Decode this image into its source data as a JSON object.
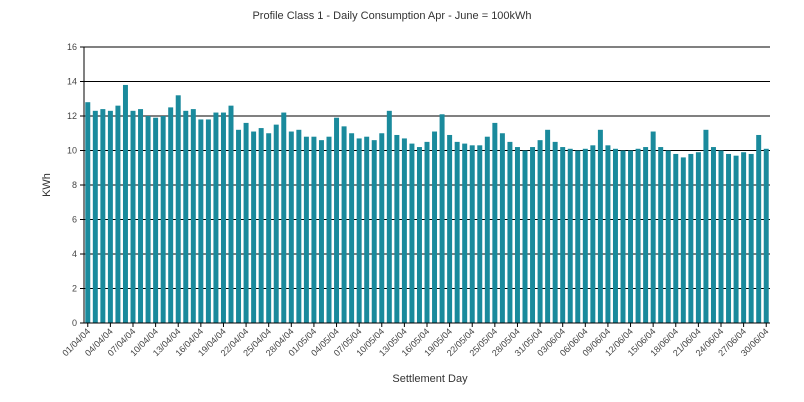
{
  "chart_data": {
    "type": "bar",
    "title": "Profile Class 1 - Daily Consumption Apr - June = 100kWh",
    "xlabel": "Settlement Day",
    "ylabel": "KWh",
    "ylim": [
      0,
      16
    ],
    "yticks": [
      0,
      2,
      4,
      6,
      8,
      10,
      12,
      14,
      16
    ],
    "grid": true,
    "bar_color": "#1a8a9c",
    "x_tick_labels": [
      {
        "index": 0,
        "label": "01/04/04"
      },
      {
        "index": 3,
        "label": "04/04/04"
      },
      {
        "index": 6,
        "label": "07/04/04"
      },
      {
        "index": 9,
        "label": "10/04/04"
      },
      {
        "index": 12,
        "label": "13/04/04"
      },
      {
        "index": 15,
        "label": "16/04/04"
      },
      {
        "index": 18,
        "label": "19/04/04"
      },
      {
        "index": 21,
        "label": "22/04/04"
      },
      {
        "index": 24,
        "label": "25/04/04"
      },
      {
        "index": 27,
        "label": "28/04/04"
      },
      {
        "index": 30,
        "label": "01/05/04"
      },
      {
        "index": 33,
        "label": "04/05/04"
      },
      {
        "index": 36,
        "label": "07/05/04"
      },
      {
        "index": 39,
        "label": "10/05/04"
      },
      {
        "index": 42,
        "label": "13/05/04"
      },
      {
        "index": 45,
        "label": "16/05/04"
      },
      {
        "index": 48,
        "label": "19/05/04"
      },
      {
        "index": 51,
        "label": "22/05/04"
      },
      {
        "index": 54,
        "label": "25/05/04"
      },
      {
        "index": 57,
        "label": "28/05/04"
      },
      {
        "index": 60,
        "label": "31/05/04"
      },
      {
        "index": 63,
        "label": "03/06/04"
      },
      {
        "index": 66,
        "label": "06/06/04"
      },
      {
        "index": 69,
        "label": "09/06/04"
      },
      {
        "index": 72,
        "label": "12/06/04"
      },
      {
        "index": 75,
        "label": "15/06/04"
      },
      {
        "index": 78,
        "label": "18/06/04"
      },
      {
        "index": 81,
        "label": "21/06/04"
      },
      {
        "index": 84,
        "label": "24/06/04"
      },
      {
        "index": 87,
        "label": "27/06/04"
      },
      {
        "index": 90,
        "label": "30/06/04"
      }
    ],
    "values": [
      12.8,
      12.3,
      12.4,
      12.3,
      12.6,
      13.8,
      12.3,
      12.4,
      12.0,
      11.9,
      12.0,
      12.5,
      13.2,
      12.3,
      12.4,
      11.8,
      11.8,
      12.2,
      12.2,
      12.6,
      11.2,
      11.6,
      11.1,
      11.3,
      11.0,
      11.5,
      12.2,
      11.1,
      11.2,
      10.8,
      10.8,
      10.6,
      10.8,
      11.9,
      11.4,
      11.0,
      10.7,
      10.8,
      10.6,
      11.0,
      12.3,
      10.9,
      10.7,
      10.4,
      10.2,
      10.5,
      11.1,
      12.1,
      10.9,
      10.5,
      10.4,
      10.3,
      10.3,
      10.8,
      11.6,
      11.0,
      10.5,
      10.2,
      10.0,
      10.2,
      10.6,
      11.2,
      10.5,
      10.2,
      10.1,
      10.0,
      10.1,
      10.3,
      11.2,
      10.3,
      10.1,
      10.0,
      10.0,
      10.1,
      10.2,
      11.1,
      10.2,
      10.0,
      9.8,
      9.6,
      9.8,
      9.9,
      11.2,
      10.2,
      10.0,
      9.8,
      9.7,
      9.9,
      9.8,
      10.9,
      10.1
    ]
  }
}
